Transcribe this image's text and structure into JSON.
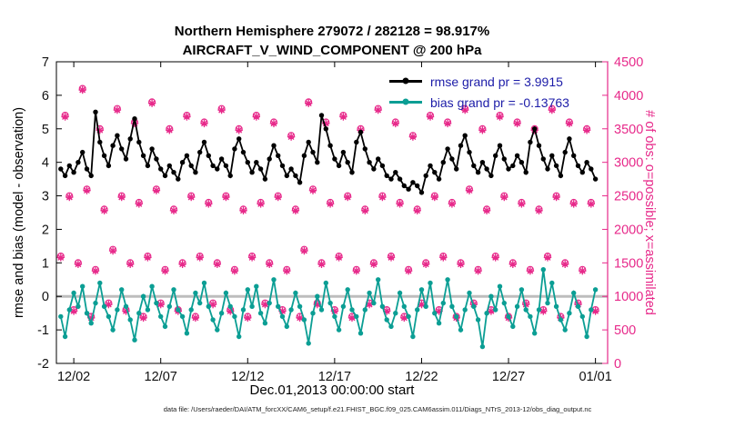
{
  "title": {
    "line1": "Northern Hemisphere 279072 / 282128 = 98.917%",
    "line2": "AIRCRAFT_V_WIND_COMPONENT @ 200 hPa"
  },
  "axes": {
    "left_label": "rmse and bias (model - observation)",
    "right_label": "# of obs: o=possible; x=assimilated",
    "x_label": "Dec.01,2013 00:00:00 start"
  },
  "legend": {
    "rmse_label": "rmse grand pr = 3.9915",
    "bias_label": "bias grand pr = -0.13763"
  },
  "caption": "data file: /Users/raeder/DAI/ATM_forcXX/CAM6_setup/f.e21.FHIST_BGC.f09_025.CAM6assim.011/Diags_NTrS_2013-12/obs_diag_output.nc",
  "colors": {
    "rmse": "#000000",
    "bias": "#0b9e94",
    "obs": "#e7298a",
    "legend_text": "#1c1ca8",
    "zero_line": "#bdbdbd",
    "axis": "#000000"
  },
  "chart_data": {
    "type": "line",
    "title": "Northern Hemisphere 279072 / 282128 = 98.917% | AIRCRAFT_V_WIND_COMPONENT @ 200 hPa",
    "xlabel": "Dec.01,2013 00:00:00 start",
    "left_ylabel": "rmse and bias (model - observation)",
    "right_ylabel": "# of obs: o=possible; x=assimilated",
    "xlim": [
      0,
      31.7
    ],
    "left_ylim": [
      -2,
      7
    ],
    "right_ylim": [
      0,
      4500
    ],
    "x_start_day": 0.25,
    "x_step_day": 0.25,
    "x_ticks": {
      "days": [
        1,
        6,
        11,
        16,
        21,
        26,
        31
      ],
      "labels": [
        "12/02",
        "12/07",
        "12/12",
        "12/17",
        "12/22",
        "12/27",
        "01/01"
      ]
    },
    "left_yticks": [
      -2,
      -1,
      0,
      1,
      2,
      3,
      4,
      5,
      6,
      7
    ],
    "right_yticks": [
      0,
      500,
      1000,
      1500,
      2000,
      2500,
      3000,
      3500,
      4000,
      4500
    ],
    "grand_stats": {
      "rmse": 3.9915,
      "bias": -0.13763
    },
    "series": {
      "rmse": [
        3.8,
        3.6,
        3.9,
        3.7,
        4.0,
        4.3,
        3.8,
        3.6,
        5.5,
        4.6,
        4.2,
        3.9,
        4.5,
        4.8,
        4.4,
        4.1,
        4.7,
        5.3,
        4.6,
        4.2,
        3.9,
        4.4,
        4.1,
        3.8,
        3.6,
        3.9,
        3.7,
        3.5,
        4.0,
        4.2,
        3.9,
        3.7,
        4.3,
        4.6,
        4.2,
        3.9,
        3.8,
        4.1,
        3.9,
        3.6,
        4.4,
        4.7,
        4.3,
        4.0,
        3.7,
        4.0,
        3.8,
        3.5,
        4.1,
        4.5,
        4.2,
        3.9,
        3.6,
        3.8,
        3.6,
        3.4,
        4.2,
        4.6,
        4.3,
        4.0,
        5.4,
        5.0,
        4.5,
        4.1,
        3.9,
        4.3,
        4.0,
        3.7,
        4.6,
        4.9,
        4.4,
        4.0,
        3.8,
        4.1,
        3.9,
        3.6,
        3.5,
        3.7,
        3.5,
        3.3,
        3.2,
        3.4,
        3.3,
        3.1,
        3.6,
        3.9,
        3.7,
        3.5,
        4.0,
        4.4,
        4.1,
        3.8,
        4.5,
        4.8,
        4.3,
        3.9,
        3.7,
        4.0,
        3.8,
        3.6,
        4.2,
        4.5,
        4.1,
        3.8,
        3.9,
        4.2,
        4.0,
        3.7,
        4.6,
        5.0,
        4.5,
        4.1,
        3.8,
        4.2,
        3.9,
        3.6,
        4.3,
        4.7,
        4.2,
        3.9,
        3.7,
        4.0,
        3.8,
        3.5
      ],
      "bias": [
        -0.6,
        -1.2,
        -0.4,
        0.1,
        -0.3,
        0.3,
        -0.5,
        -0.8,
        -0.2,
        0.4,
        -0.3,
        -0.6,
        -1.0,
        -0.4,
        0.2,
        -0.3,
        -0.7,
        -1.3,
        -0.5,
        0.0,
        -0.4,
        0.3,
        -0.2,
        -0.6,
        -0.9,
        -0.3,
        0.2,
        -0.4,
        -0.6,
        -1.1,
        -0.4,
        0.1,
        -0.2,
        0.4,
        -0.3,
        -0.7,
        -1.0,
        -0.5,
        0.1,
        -0.3,
        -0.6,
        -1.2,
        -0.4,
        0.2,
        -0.3,
        0.3,
        -0.5,
        -0.8,
        -0.2,
        0.5,
        -0.3,
        -0.6,
        -0.9,
        -0.4,
        0.1,
        -0.3,
        -0.7,
        -1.4,
        -0.5,
        0.0,
        -0.4,
        0.4,
        -0.2,
        -0.6,
        -1.0,
        -0.3,
        0.2,
        -0.4,
        -0.6,
        -1.1,
        -0.4,
        0.1,
        -0.2,
        0.5,
        -0.3,
        -0.7,
        -0.9,
        -0.5,
        0.1,
        -0.3,
        -0.6,
        -1.2,
        -0.4,
        0.2,
        -0.3,
        0.4,
        -0.5,
        -0.8,
        -0.2,
        0.5,
        -0.3,
        -0.6,
        -1.0,
        -0.4,
        0.1,
        -0.3,
        -0.7,
        -1.5,
        -0.5,
        0.0,
        -0.4,
        0.3,
        -0.2,
        -0.6,
        -0.9,
        -0.3,
        0.2,
        -0.4,
        -0.6,
        -1.1,
        -0.4,
        0.8,
        -0.2,
        0.4,
        -0.3,
        -0.7,
        -1.0,
        -0.5,
        0.1,
        -0.3,
        -0.6,
        -1.2,
        -0.4,
        0.2
      ],
      "obs_possible": [
        1600,
        3700,
        2500,
        800,
        1500,
        4100,
        2600,
        700,
        1400,
        3500,
        2300,
        900,
        1700,
        3800,
        2500,
        800,
        1500,
        3600,
        2400,
        700,
        1600,
        3900,
        2600,
        900,
        1400,
        3500,
        2300,
        800,
        1500,
        3700,
        2500,
        700,
        1600,
        3600,
        2400,
        900,
        1500,
        3800,
        2500,
        800,
        1400,
        3500,
        2300,
        700,
        1600,
        3700,
        2400,
        900,
        1500,
        3600,
        2500,
        800,
        1400,
        3400,
        2300,
        700,
        1700,
        3900,
        2600,
        900,
        1500,
        3600,
        2400,
        800,
        1600,
        3700,
        2500,
        700,
        1400,
        3500,
        2300,
        900,
        1500,
        3800,
        2500,
        800,
        1600,
        3600,
        2400,
        700,
        1400,
        3400,
        2300,
        900,
        1500,
        3700,
        2500,
        800,
        1600,
        3600,
        2400,
        700,
        1500,
        3800,
        2600,
        900,
        1400,
        3500,
        2300,
        800,
        1600,
        3700,
        2500,
        700,
        1500,
        3600,
        2400,
        900,
        1400,
        3500,
        2300,
        800,
        1600,
        3800,
        2500,
        700,
        1500,
        3600,
        2400,
        900,
        1400,
        3500,
        2400,
        800
      ],
      "obs_assimilated": [
        1580,
        3680,
        2480,
        780,
        1480,
        4080,
        2580,
        680,
        1380,
        3480,
        2280,
        880,
        1680,
        3780,
        2480,
        780,
        1480,
        3580,
        2380,
        680,
        1580,
        3880,
        2580,
        880,
        1380,
        3480,
        2280,
        780,
        1480,
        3680,
        2480,
        680,
        1580,
        3580,
        2380,
        880,
        1480,
        3780,
        2480,
        780,
        1380,
        3480,
        2280,
        680,
        1580,
        3680,
        2380,
        880,
        1480,
        3580,
        2480,
        780,
        1380,
        3380,
        2280,
        680,
        1680,
        3880,
        2580,
        880,
        1480,
        3580,
        2380,
        780,
        1580,
        3680,
        2480,
        680,
        1380,
        3480,
        2280,
        880,
        1480,
        3780,
        2480,
        780,
        1580,
        3580,
        2380,
        680,
        1380,
        3380,
        2280,
        880,
        1480,
        3680,
        2480,
        780,
        1580,
        3580,
        2380,
        680,
        1480,
        3780,
        2580,
        880,
        1380,
        3480,
        2280,
        780,
        1580,
        3680,
        2480,
        680,
        1480,
        3580,
        2380,
        880,
        1380,
        3480,
        2280,
        780,
        1580,
        3780,
        2480,
        680,
        1480,
        3580,
        2380,
        880,
        1380,
        3480,
        2380,
        780
      ]
    }
  }
}
